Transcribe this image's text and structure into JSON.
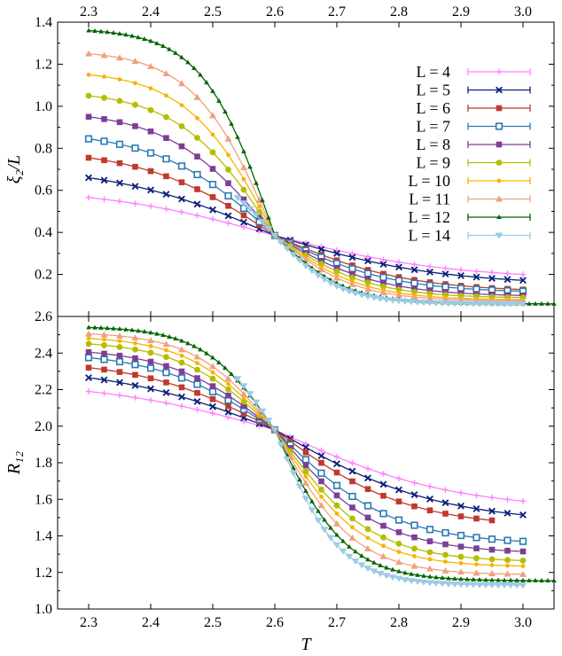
{
  "chart_data": [
    {
      "type": "line",
      "panel": "top",
      "ylabel": "ξ₂/L",
      "xlim": [
        2.25,
        3.05
      ],
      "ylim": [
        0.0,
        1.4
      ],
      "x_ticks_top": [
        "2.3",
        "2.4",
        "2.5",
        "2.6",
        "2.7",
        "2.8",
        "2.9",
        "3.0"
      ],
      "y_ticks": [
        "0.2",
        "0.4",
        "0.6",
        "0.8",
        "1.0",
        "1.2",
        "1.4"
      ],
      "legend_position": "top-right",
      "series": [
        {
          "name": "L = 4",
          "color": "#ff80ff",
          "marker": "plus",
          "x": [
            2.3,
            3.0
          ],
          "values": [
            0.566,
            0.2
          ],
          "mid": 0.05
        },
        {
          "name": "L = 5",
          "color": "#0c1f7a",
          "marker": "x",
          "x": [
            2.3,
            3.0
          ],
          "values": [
            0.66,
            0.172
          ],
          "mid": 0.06
        },
        {
          "name": "L = 6",
          "color": "#c0392b",
          "marker": "square",
          "x": [
            2.3,
            3.0
          ],
          "values": [
            0.755,
            0.128
          ],
          "mid": 0.09
        },
        {
          "name": "L = 7",
          "color": "#2a7ab0",
          "marker": "square-open",
          "x": [
            2.3,
            3.0
          ],
          "values": [
            0.845,
            0.12
          ],
          "mid": 0.11
        },
        {
          "name": "L = 8",
          "color": "#7b3f98",
          "marker": "square",
          "x": [
            2.3,
            3.0
          ],
          "values": [
            0.95,
            0.1
          ],
          "mid": 0.13
        },
        {
          "name": "L = 9",
          "color": "#b5bd00",
          "marker": "circle",
          "x": [
            2.3,
            3.0
          ],
          "values": [
            1.05,
            0.09
          ],
          "mid": 0.15
        },
        {
          "name": "L = 10",
          "color": "#f6b400",
          "marker": "dot",
          "x": [
            2.3,
            3.0
          ],
          "values": [
            1.15,
            0.08
          ],
          "mid": 0.17
        },
        {
          "name": "L = 11",
          "color": "#f0a080",
          "marker": "triangle",
          "x": [
            2.3,
            3.0
          ],
          "values": [
            1.25,
            0.075
          ],
          "mid": 0.19
        },
        {
          "name": "L = 12",
          "color": "#006400",
          "marker": "triangle-small",
          "x": [
            2.3,
            3.05
          ],
          "values": [
            1.36,
            0.06
          ],
          "mid": 0.22
        },
        {
          "name": "L = 14",
          "color": "#9ccbe6",
          "marker": "triangle-down",
          "x": [
            2.54,
            3.0
          ],
          "values": [
            0.565,
            0.06
          ],
          "mid": 0.25
        }
      ]
    },
    {
      "type": "line",
      "panel": "bottom",
      "xlabel": "T",
      "ylabel": "R₁₂",
      "xlim": [
        2.25,
        3.05
      ],
      "ylim": [
        1.0,
        2.6
      ],
      "x_ticks": [
        "2.3",
        "2.4",
        "2.5",
        "2.6",
        "2.7",
        "2.8",
        "2.9",
        "3.0"
      ],
      "y_ticks": [
        "1.0",
        "1.2",
        "1.4",
        "1.6",
        "1.8",
        "2.0",
        "2.2",
        "2.4",
        "2.6"
      ],
      "series": [
        {
          "name": "L = 4",
          "x": [
            2.3,
            3.0
          ],
          "values": [
            2.19,
            1.59
          ],
          "mid": 0.05
        },
        {
          "name": "L = 5",
          "x": [
            2.3,
            3.0
          ],
          "values": [
            2.265,
            1.515
          ],
          "mid": 0.06
        },
        {
          "name": "L = 6",
          "x": [
            2.3,
            2.95
          ],
          "values": [
            2.32,
            1.485
          ],
          "mid": 0.09
        },
        {
          "name": "L = 7",
          "x": [
            2.3,
            3.0
          ],
          "values": [
            2.375,
            1.37
          ],
          "mid": 0.11
        },
        {
          "name": "L = 8",
          "x": [
            2.3,
            3.0
          ],
          "values": [
            2.405,
            1.315
          ],
          "mid": 0.13
        },
        {
          "name": "L = 9",
          "x": [
            2.3,
            3.0
          ],
          "values": [
            2.45,
            1.265
          ],
          "mid": 0.15
        },
        {
          "name": "L = 10",
          "x": [
            2.3,
            3.0
          ],
          "values": [
            2.48,
            1.235
          ],
          "mid": 0.17
        },
        {
          "name": "L = 11",
          "x": [
            2.3,
            3.0
          ],
          "values": [
            2.505,
            1.19
          ],
          "mid": 0.19
        },
        {
          "name": "L = 12",
          "x": [
            2.3,
            3.05
          ],
          "values": [
            2.54,
            1.155
          ],
          "mid": 0.22
        },
        {
          "name": "L = 14",
          "x": [
            2.54,
            3.0
          ],
          "values": [
            2.26,
            1.13
          ],
          "mid": 0.25
        }
      ]
    }
  ]
}
